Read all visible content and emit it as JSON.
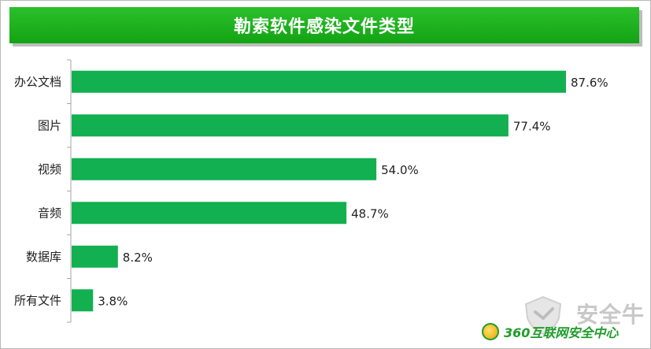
{
  "chart_data": {
    "type": "bar",
    "orientation": "horizontal",
    "title": "勒索软件感染文件类型",
    "categories": [
      "办公文档",
      "图片",
      "视频",
      "音频",
      "数据库",
      "所有文件"
    ],
    "values": [
      87.6,
      77.4,
      54.0,
      48.7,
      8.2,
      3.8
    ],
    "value_labels": [
      "87.6%",
      "77.4%",
      "54.0%",
      "48.7%",
      "8.2%",
      "3.8%"
    ],
    "xlim": [
      0,
      100
    ],
    "grid": false,
    "legend": "none",
    "bar_color": "#12b050"
  },
  "watermark": {
    "text": "安全牛",
    "color": "#c8c8c8"
  },
  "branding": {
    "logo_text": "360互联网安全中心",
    "logo_color": "#1f9d2a"
  }
}
